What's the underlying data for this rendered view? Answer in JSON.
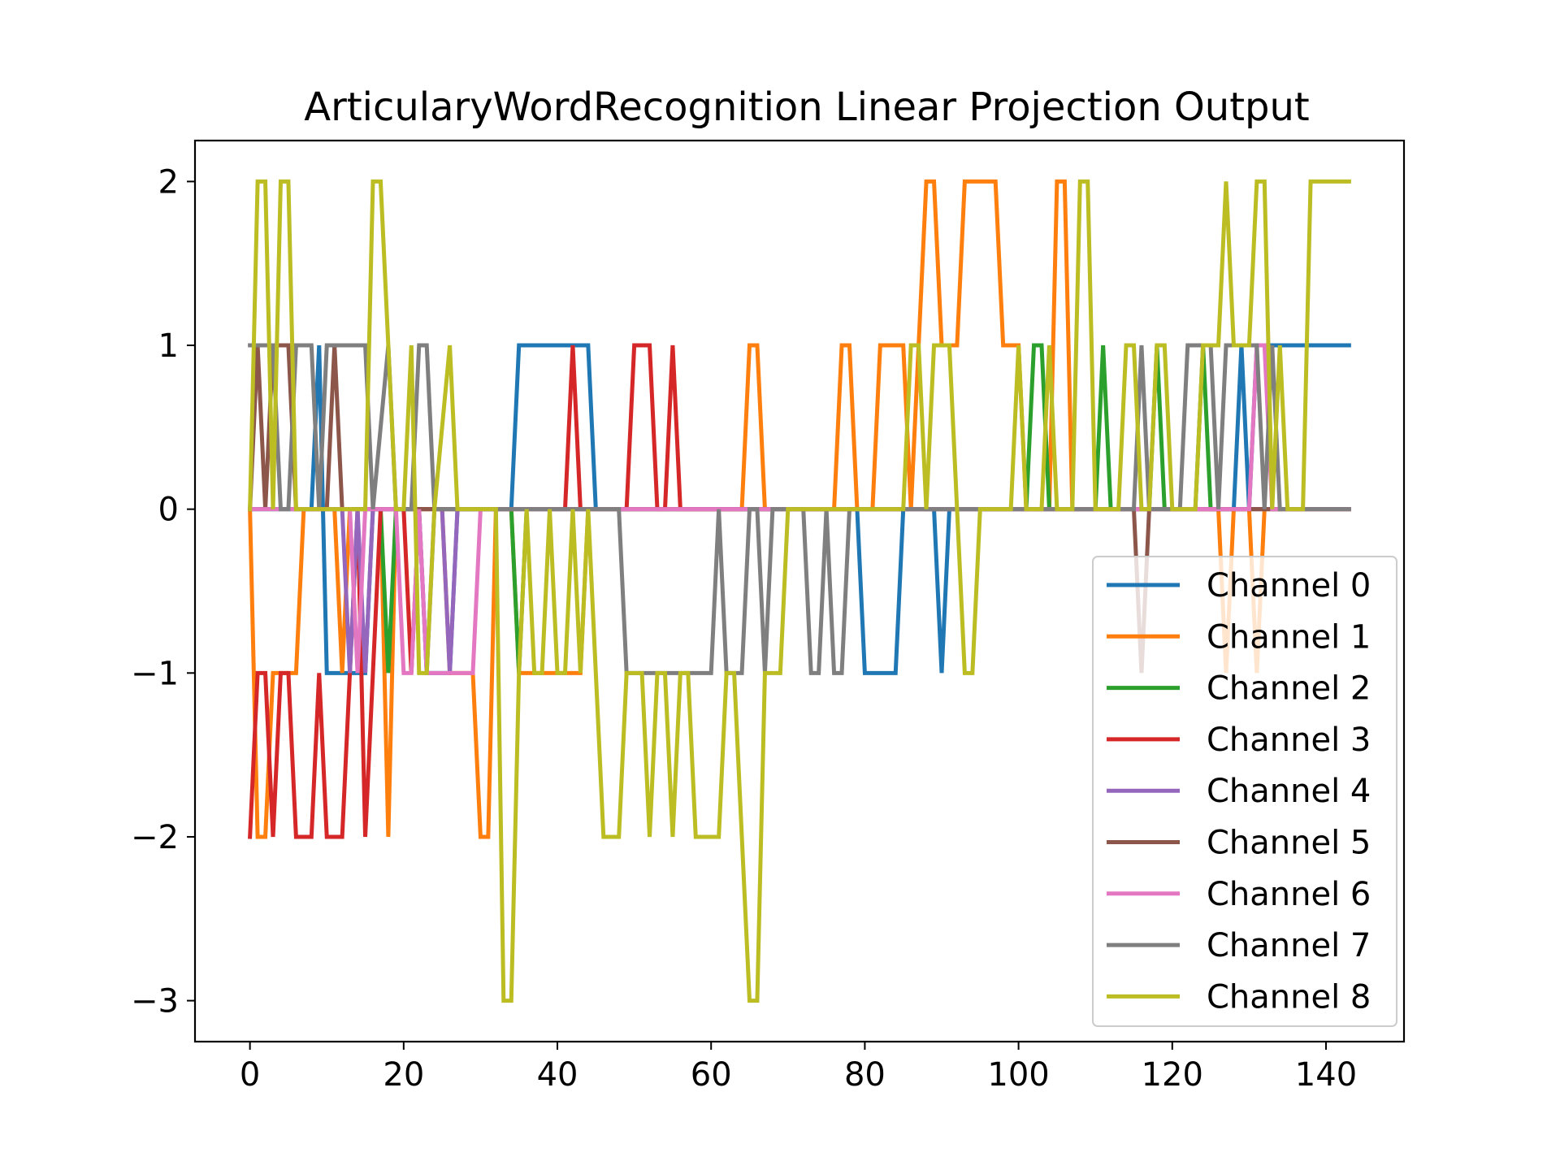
{
  "chart_data": {
    "type": "line",
    "title": "ArticularyWordRecognition Linear Projection Output",
    "xlabel": "",
    "ylabel": "",
    "xlim": [
      -7.15,
      150.15
    ],
    "ylim": [
      -3.25,
      2.25
    ],
    "xticks": [
      0,
      20,
      40,
      60,
      80,
      100,
      120,
      140
    ],
    "xtick_labels": [
      "0",
      "20",
      "40",
      "60",
      "80",
      "100",
      "120",
      "140"
    ],
    "yticks": [
      2,
      1,
      0,
      -1,
      -2,
      -3
    ],
    "ytick_labels": [
      "2",
      "1",
      "0",
      "−1",
      "−2",
      "−3"
    ],
    "grid": false,
    "legend_position": "lower right",
    "series": [
      {
        "name": "Channel 0",
        "color": "#1f77b4",
        "points": [
          [
            0,
            0
          ],
          [
            8,
            0
          ],
          [
            9,
            1
          ],
          [
            10,
            -1
          ],
          [
            15,
            -1
          ],
          [
            16,
            0
          ],
          [
            22,
            0
          ],
          [
            23,
            -1
          ],
          [
            26,
            -1
          ],
          [
            27,
            0
          ],
          [
            34,
            0
          ],
          [
            35,
            1
          ],
          [
            44,
            1
          ],
          [
            45,
            0
          ],
          [
            49,
            0
          ],
          [
            50,
            0
          ],
          [
            79,
            0
          ],
          [
            80,
            -1
          ],
          [
            84,
            -1
          ],
          [
            85,
            0
          ],
          [
            89,
            0
          ],
          [
            90,
            -1
          ],
          [
            91,
            0
          ],
          [
            128,
            0
          ],
          [
            129,
            1
          ],
          [
            130,
            0
          ],
          [
            131,
            1
          ],
          [
            143,
            1
          ]
        ]
      },
      {
        "name": "Channel 1",
        "color": "#ff7f0e",
        "points": [
          [
            0,
            0
          ],
          [
            1,
            -2
          ],
          [
            2,
            -2
          ],
          [
            3,
            -1
          ],
          [
            6,
            -1
          ],
          [
            7,
            0
          ],
          [
            11,
            0
          ],
          [
            12,
            -1
          ],
          [
            13,
            0
          ],
          [
            17,
            0
          ],
          [
            18,
            -2
          ],
          [
            19,
            0
          ],
          [
            25,
            0
          ],
          [
            26,
            -1
          ],
          [
            29,
            -1
          ],
          [
            30,
            -2
          ],
          [
            31,
            -2
          ],
          [
            32,
            0
          ],
          [
            34,
            0
          ],
          [
            35,
            -1
          ],
          [
            43,
            -1
          ],
          [
            44,
            0
          ],
          [
            64,
            0
          ],
          [
            65,
            1
          ],
          [
            66,
            1
          ],
          [
            67,
            0
          ],
          [
            76,
            0
          ],
          [
            77,
            1
          ],
          [
            78,
            1
          ],
          [
            79,
            0
          ],
          [
            81,
            0
          ],
          [
            82,
            1
          ],
          [
            85,
            1
          ],
          [
            86,
            0
          ],
          [
            87,
            1
          ],
          [
            88,
            2
          ],
          [
            89,
            2
          ],
          [
            90,
            1
          ],
          [
            92,
            1
          ],
          [
            93,
            2
          ],
          [
            97,
            2
          ],
          [
            98,
            1
          ],
          [
            100,
            1
          ],
          [
            101,
            0
          ],
          [
            104,
            0
          ],
          [
            105,
            2
          ],
          [
            106,
            2
          ],
          [
            107,
            0
          ],
          [
            126,
            0
          ],
          [
            127,
            -1
          ],
          [
            128,
            0
          ],
          [
            130,
            0
          ],
          [
            131,
            -1
          ],
          [
            132,
            0
          ],
          [
            143,
            0
          ]
        ]
      },
      {
        "name": "Channel 2",
        "color": "#2ca02c",
        "points": [
          [
            0,
            0
          ],
          [
            17,
            0
          ],
          [
            18,
            -1
          ],
          [
            19,
            0
          ],
          [
            34,
            0
          ],
          [
            35,
            -1
          ],
          [
            36,
            0
          ],
          [
            101,
            0
          ],
          [
            102,
            1
          ],
          [
            103,
            1
          ],
          [
            104,
            0
          ],
          [
            110,
            0
          ],
          [
            111,
            1
          ],
          [
            112,
            0
          ],
          [
            117,
            0
          ],
          [
            118,
            1
          ],
          [
            119,
            0
          ],
          [
            123,
            0
          ],
          [
            124,
            1
          ],
          [
            125,
            0
          ],
          [
            143,
            0
          ]
        ]
      },
      {
        "name": "Channel 3",
        "color": "#d62728",
        "points": [
          [
            0,
            -2
          ],
          [
            1,
            -1
          ],
          [
            2,
            -1
          ],
          [
            3,
            -2
          ],
          [
            4,
            -1
          ],
          [
            5,
            -1
          ],
          [
            6,
            -2
          ],
          [
            8,
            -2
          ],
          [
            9,
            -1
          ],
          [
            10,
            -2
          ],
          [
            12,
            -2
          ],
          [
            13,
            -1
          ],
          [
            14,
            0
          ],
          [
            15,
            -2
          ],
          [
            16,
            -1
          ],
          [
            17,
            0
          ],
          [
            20,
            0
          ],
          [
            21,
            -1
          ],
          [
            22,
            0
          ],
          [
            41,
            0
          ],
          [
            42,
            1
          ],
          [
            43,
            0
          ],
          [
            44,
            0
          ],
          [
            49,
            0
          ],
          [
            50,
            1
          ],
          [
            52,
            1
          ],
          [
            53,
            0
          ],
          [
            54,
            0
          ],
          [
            55,
            1
          ],
          [
            56,
            0
          ],
          [
            143,
            0
          ]
        ]
      },
      {
        "name": "Channel 4",
        "color": "#9467bd",
        "points": [
          [
            0,
            0
          ],
          [
            12,
            0
          ],
          [
            13,
            -1
          ],
          [
            14,
            0
          ],
          [
            15,
            -1
          ],
          [
            16,
            0
          ],
          [
            22,
            0
          ],
          [
            23,
            -1
          ],
          [
            24,
            0
          ],
          [
            25,
            0
          ],
          [
            26,
            -1
          ],
          [
            27,
            0
          ],
          [
            143,
            0
          ]
        ]
      },
      {
        "name": "Channel 5",
        "color": "#8c564b",
        "points": [
          [
            0,
            0
          ],
          [
            1,
            1
          ],
          [
            2,
            0
          ],
          [
            3,
            1
          ],
          [
            5,
            1
          ],
          [
            6,
            0
          ],
          [
            10,
            0
          ],
          [
            11,
            1
          ],
          [
            12,
            0
          ],
          [
            115,
            0
          ],
          [
            116,
            -1
          ],
          [
            117,
            0
          ],
          [
            143,
            0
          ]
        ]
      },
      {
        "name": "Channel 6",
        "color": "#e377c2",
        "points": [
          [
            0,
            0
          ],
          [
            13,
            0
          ],
          [
            14,
            -1
          ],
          [
            15,
            0
          ],
          [
            19,
            0
          ],
          [
            20,
            -1
          ],
          [
            21,
            -1
          ],
          [
            22,
            0
          ],
          [
            23,
            -1
          ],
          [
            29,
            -1
          ],
          [
            30,
            0
          ],
          [
            130,
            0
          ],
          [
            131,
            1
          ],
          [
            132,
            1
          ],
          [
            133,
            0
          ],
          [
            143,
            0
          ]
        ]
      },
      {
        "name": "Channel 7",
        "color": "#7f7f7f",
        "points": [
          [
            0,
            1
          ],
          [
            3,
            1
          ],
          [
            4,
            0
          ],
          [
            5,
            0
          ],
          [
            6,
            1
          ],
          [
            8,
            1
          ],
          [
            9,
            0
          ],
          [
            10,
            1
          ],
          [
            15,
            1
          ],
          [
            16,
            0
          ],
          [
            18,
            1
          ],
          [
            19,
            0
          ],
          [
            21,
            0
          ],
          [
            22,
            1
          ],
          [
            23,
            1
          ],
          [
            24,
            0
          ],
          [
            48,
            0
          ],
          [
            49,
            -1
          ],
          [
            60,
            -1
          ],
          [
            61,
            0
          ],
          [
            62,
            -1
          ],
          [
            64,
            -1
          ],
          [
            65,
            0
          ],
          [
            66,
            0
          ],
          [
            67,
            -1
          ],
          [
            68,
            0
          ],
          [
            72,
            0
          ],
          [
            73,
            -1
          ],
          [
            74,
            -1
          ],
          [
            75,
            0
          ],
          [
            76,
            -1
          ],
          [
            77,
            -1
          ],
          [
            78,
            0
          ],
          [
            115,
            0
          ],
          [
            116,
            1
          ],
          [
            117,
            0
          ],
          [
            121,
            0
          ],
          [
            122,
            1
          ],
          [
            125,
            1
          ],
          [
            126,
            0
          ],
          [
            127,
            1
          ],
          [
            131,
            1
          ],
          [
            132,
            0
          ],
          [
            133,
            1
          ],
          [
            134,
            0
          ],
          [
            143,
            0
          ]
        ]
      },
      {
        "name": "Channel 8",
        "color": "#bcbd22",
        "points": [
          [
            0,
            0
          ],
          [
            1,
            2
          ],
          [
            2,
            2
          ],
          [
            3,
            0
          ],
          [
            4,
            2
          ],
          [
            5,
            2
          ],
          [
            6,
            0
          ],
          [
            15,
            0
          ],
          [
            16,
            2
          ],
          [
            17,
            2
          ],
          [
            18,
            1
          ],
          [
            19,
            0
          ],
          [
            20,
            0
          ],
          [
            21,
            1
          ],
          [
            22,
            -1
          ],
          [
            23,
            -1
          ],
          [
            24,
            0
          ],
          [
            26,
            1
          ],
          [
            27,
            0
          ],
          [
            32,
            0
          ],
          [
            33,
            -3
          ],
          [
            34,
            -3
          ],
          [
            35,
            -1
          ],
          [
            36,
            0
          ],
          [
            37,
            -1
          ],
          [
            38,
            -1
          ],
          [
            39,
            0
          ],
          [
            40,
            -1
          ],
          [
            41,
            -1
          ],
          [
            42,
            0
          ],
          [
            43,
            -1
          ],
          [
            44,
            0
          ],
          [
            45,
            -1
          ],
          [
            46,
            -2
          ],
          [
            48,
            -2
          ],
          [
            49,
            -1
          ],
          [
            51,
            -1
          ],
          [
            52,
            -2
          ],
          [
            53,
            -1
          ],
          [
            54,
            -1
          ],
          [
            55,
            -2
          ],
          [
            56,
            -1
          ],
          [
            57,
            -1
          ],
          [
            58,
            -2
          ],
          [
            61,
            -2
          ],
          [
            62,
            -1
          ],
          [
            63,
            -1
          ],
          [
            64,
            -2
          ],
          [
            65,
            -3
          ],
          [
            66,
            -3
          ],
          [
            67,
            -1
          ],
          [
            68,
            -1
          ],
          [
            69,
            -1
          ],
          [
            70,
            0
          ],
          [
            85,
            0
          ],
          [
            86,
            1
          ],
          [
            87,
            1
          ],
          [
            88,
            0
          ],
          [
            89,
            1
          ],
          [
            91,
            1
          ],
          [
            92,
            0
          ],
          [
            93,
            -1
          ],
          [
            94,
            -1
          ],
          [
            95,
            0
          ],
          [
            99,
            0
          ],
          [
            100,
            1
          ],
          [
            101,
            0
          ],
          [
            103,
            0
          ],
          [
            104,
            1
          ],
          [
            105,
            0
          ],
          [
            107,
            0
          ],
          [
            108,
            2
          ],
          [
            109,
            2
          ],
          [
            110,
            0
          ],
          [
            113,
            0
          ],
          [
            114,
            1
          ],
          [
            115,
            1
          ],
          [
            116,
            0
          ],
          [
            117,
            0
          ],
          [
            118,
            1
          ],
          [
            119,
            1
          ],
          [
            120,
            0
          ],
          [
            123,
            0
          ],
          [
            124,
            1
          ],
          [
            126,
            1
          ],
          [
            127,
            2
          ],
          [
            128,
            1
          ],
          [
            130,
            1
          ],
          [
            131,
            2
          ],
          [
            132,
            2
          ],
          [
            133,
            0
          ],
          [
            134,
            1
          ],
          [
            135,
            0
          ],
          [
            137,
            0
          ],
          [
            138,
            2
          ],
          [
            143,
            2
          ]
        ]
      }
    ]
  }
}
